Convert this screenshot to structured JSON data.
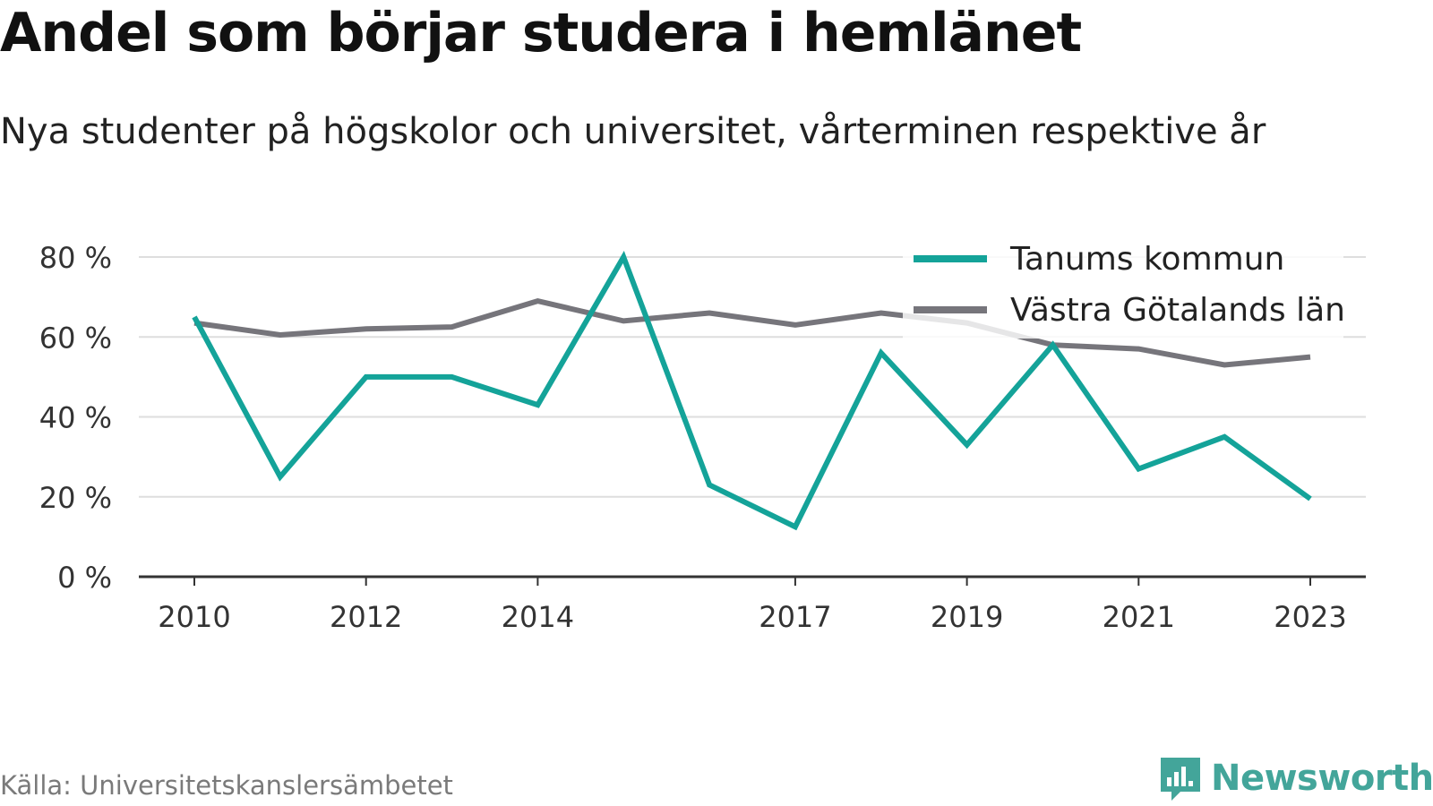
{
  "title": "Andel som börjar studera i hemlänet",
  "subtitle": "Nya studenter på högskolor och universitet, vårterminen respektive år",
  "source": "Källa: Universitetskanslersämbetet",
  "brand": {
    "name": "Newsworthy",
    "icon": "newsworthy-logo-icon",
    "color": "#43a59a"
  },
  "chart_data": {
    "type": "line",
    "x": [
      2010,
      2011,
      2012,
      2013,
      2014,
      2015,
      2016,
      2017,
      2018,
      2019,
      2020,
      2021,
      2022,
      2023
    ],
    "x_ticks": [
      "2010",
      "2012",
      "2014",
      "2017",
      "2019",
      "2021",
      "2023"
    ],
    "y_ticks": [
      "0 %",
      "20 %",
      "40 %",
      "60 %",
      "80 %"
    ],
    "ylim": [
      0,
      80
    ],
    "grid": true,
    "legend_position": "top-right",
    "series": [
      {
        "name": "Tanums kommun",
        "color": "#14a399",
        "values": [
          65,
          25,
          50,
          50,
          43,
          80,
          23,
          12.5,
          56,
          33,
          58,
          27,
          35,
          19.5
        ]
      },
      {
        "name": "Västra Götalands län",
        "color": "#76757b",
        "values": [
          63.5,
          60.5,
          62,
          62.5,
          69,
          64,
          66,
          63,
          66,
          63.5,
          58,
          57,
          53,
          55
        ]
      }
    ]
  }
}
